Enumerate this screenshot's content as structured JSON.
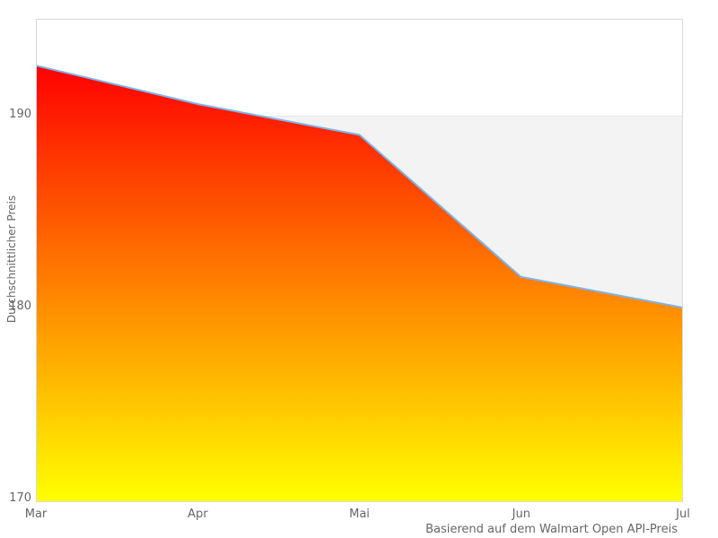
{
  "chart_data": {
    "type": "area",
    "categories": [
      "Mar",
      "Apr",
      "Mai",
      "Jun",
      "Jul"
    ],
    "values": [
      192.6,
      190.6,
      189.0,
      181.6,
      180.0
    ],
    "title": "",
    "xlabel": "",
    "ylabel": "Durchschnittlicher Preis",
    "caption": "Basierend auf dem Walmart Open API-Preis",
    "yticks": [
      190,
      180,
      170
    ],
    "ylim": [
      169.9,
      195
    ],
    "band_range": [
      180,
      190
    ],
    "grid": "horizontal",
    "legend": false,
    "colors": {
      "line": "#7cb5ec",
      "fill_top": "#ff0000",
      "fill_bottom": "#ffff00",
      "band": "#f3f3f3",
      "gridline": "#e6e6e6",
      "plot_border": "#d9d9d9",
      "text": "#666666",
      "background": "#ffffff"
    }
  }
}
